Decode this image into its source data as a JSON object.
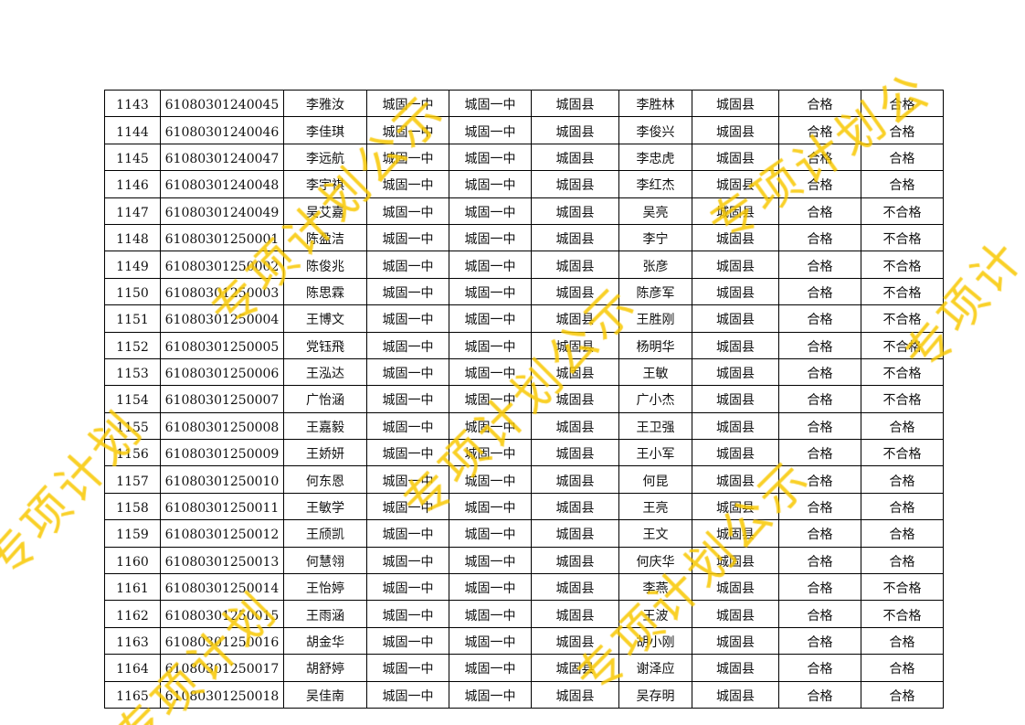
{
  "rows": [
    [
      "1143",
      "61080301240045",
      "李雅汝",
      "城固一中",
      "城固一中",
      "城固县",
      "李胜林",
      "城固县",
      "合格",
      "合格"
    ],
    [
      "1144",
      "61080301240046",
      "李佳琪",
      "城固一中",
      "城固一中",
      "城固县",
      "李俊兴",
      "城固县",
      "合格",
      "合格"
    ],
    [
      "1145",
      "61080301240047",
      "李远航",
      "城固一中",
      "城固一中",
      "城固县",
      "李忠虎",
      "城固县",
      "合格",
      "合格"
    ],
    [
      "1146",
      "61080301240048",
      "李宇祺",
      "城固一中",
      "城固一中",
      "城固县",
      "李红杰",
      "城固县",
      "合格",
      "合格"
    ],
    [
      "1147",
      "61080301240049",
      "吴艾嘉",
      "城固一中",
      "城固一中",
      "城固县",
      "吴亮",
      "城固县",
      "合格",
      "不合格"
    ],
    [
      "1148",
      "61080301250001",
      "陈盈洁",
      "城固一中",
      "城固一中",
      "城固县",
      "李宁",
      "城固县",
      "合格",
      "不合格"
    ],
    [
      "1149",
      "61080301250002",
      "陈俊兆",
      "城固一中",
      "城固一中",
      "城固县",
      "张彦",
      "城固县",
      "合格",
      "不合格"
    ],
    [
      "1150",
      "61080301250003",
      "陈思霖",
      "城固一中",
      "城固一中",
      "城固县",
      "陈彦军",
      "城固县",
      "合格",
      "不合格"
    ],
    [
      "1151",
      "61080301250004",
      "王博文",
      "城固一中",
      "城固一中",
      "城固县",
      "王胜刚",
      "城固县",
      "合格",
      "不合格"
    ],
    [
      "1152",
      "61080301250005",
      "党钰飛",
      "城固一中",
      "城固一中",
      "城固县",
      "杨明华",
      "城固县",
      "合格",
      "不合格"
    ],
    [
      "1153",
      "61080301250006",
      "王泓达",
      "城固一中",
      "城固一中",
      "城固县",
      "王敏",
      "城固县",
      "合格",
      "不合格"
    ],
    [
      "1154",
      "61080301250007",
      "广怡涵",
      "城固一中",
      "城固一中",
      "城固县",
      "广小杰",
      "城固县",
      "合格",
      "不合格"
    ],
    [
      "1155",
      "61080301250008",
      "王嘉毅",
      "城固一中",
      "城固一中",
      "城固县",
      "王卫强",
      "城固县",
      "合格",
      "合格"
    ],
    [
      "1156",
      "61080301250009",
      "王娇妍",
      "城固一中",
      "城固一中",
      "城固县",
      "王小军",
      "城固县",
      "合格",
      "不合格"
    ],
    [
      "1157",
      "61080301250010",
      "何东恩",
      "城固一中",
      "城固一中",
      "城固县",
      "何昆",
      "城固县",
      "合格",
      "合格"
    ],
    [
      "1158",
      "61080301250011",
      "王敏学",
      "城固一中",
      "城固一中",
      "城固县",
      "王亮",
      "城固县",
      "合格",
      "合格"
    ],
    [
      "1159",
      "61080301250012",
      "王颀凯",
      "城固一中",
      "城固一中",
      "城固县",
      "王文",
      "城固县",
      "合格",
      "合格"
    ],
    [
      "1160",
      "61080301250013",
      "何慧翎",
      "城固一中",
      "城固一中",
      "城固县",
      "何庆华",
      "城固县",
      "合格",
      "合格"
    ],
    [
      "1161",
      "61080301250014",
      "王怡婷",
      "城固一中",
      "城固一中",
      "城固县",
      "李燕",
      "城固县",
      "合格",
      "不合格"
    ],
    [
      "1162",
      "61080301250015",
      "王雨涵",
      "城固一中",
      "城固一中",
      "城固县",
      "王波",
      "城固县",
      "合格",
      "不合格"
    ],
    [
      "1163",
      "61080301250016",
      "胡金华",
      "城固一中",
      "城固一中",
      "城固县",
      "胡小刚",
      "城固县",
      "合格",
      "合格"
    ],
    [
      "1164",
      "61080301250017",
      "胡舒婷",
      "城固一中",
      "城固一中",
      "城固县",
      "谢泽应",
      "城固县",
      "合格",
      "合格"
    ],
    [
      "1165",
      "61080301250018",
      "吴佳南",
      "城固一中",
      "城固一中",
      "城固县",
      "吴存明",
      "城固县",
      "合格",
      "合格"
    ]
  ],
  "watermark": "专项计划公示",
  "watermark_color": "#f8c800"
}
